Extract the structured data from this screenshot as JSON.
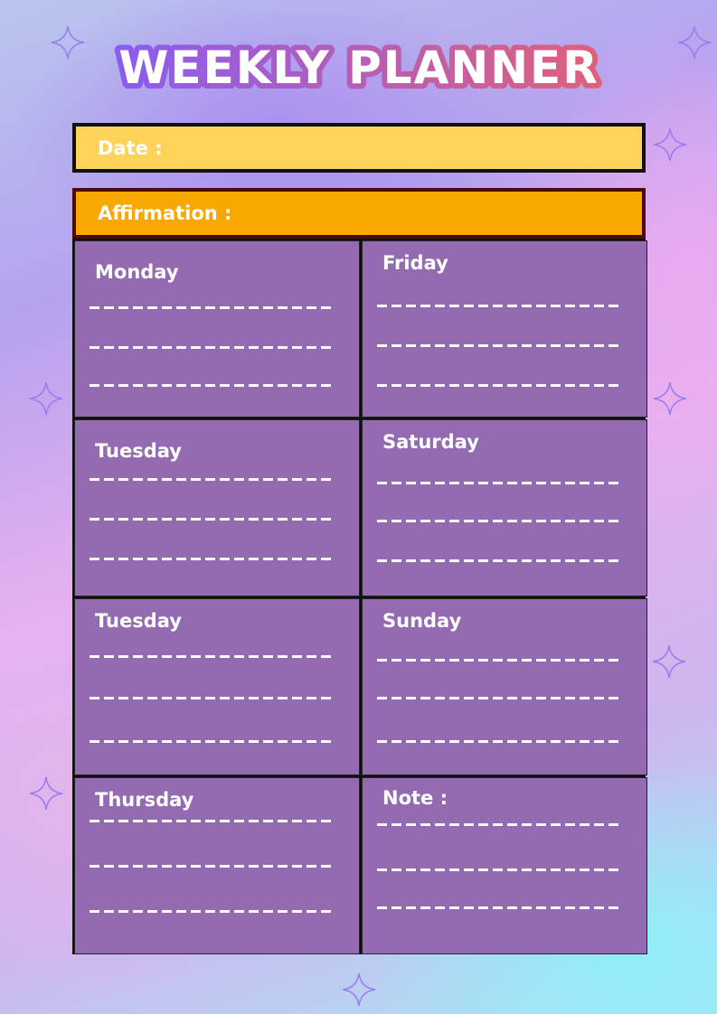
{
  "title": "WEEKLY PLANNER",
  "date_label": "Date :",
  "affirmation_label": "Affirmation :",
  "sections": [
    {
      "label": "Monday"
    },
    {
      "label": "Friday"
    },
    {
      "label": "Tuesday"
    },
    {
      "label": "Saturday"
    },
    {
      "label": "Tuesday"
    },
    {
      "label": "Sunday"
    },
    {
      "label": "Thursday"
    },
    {
      "label": "Note :"
    }
  ],
  "colors": {
    "date_bg": "#fdd35a",
    "affirmation_bg": "#f8a800",
    "cell_bg": "#946bb0",
    "title_outline_start": "#8a5cf0",
    "title_outline_end": "#e0607a"
  }
}
